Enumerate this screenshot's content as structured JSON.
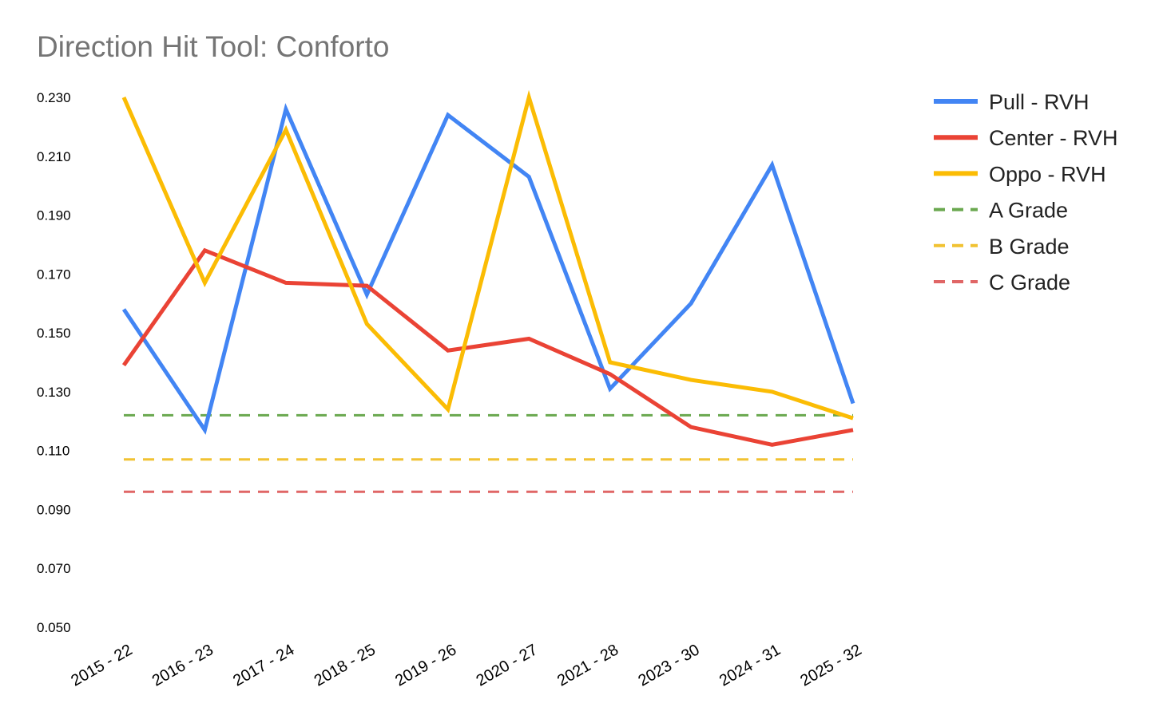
{
  "chart_data": {
    "type": "line",
    "title": "Direction Hit Tool: Conforto",
    "xlabel": "",
    "ylabel": "",
    "ylim": [
      0.05,
      0.23
    ],
    "yticks": [
      "0.050",
      "0.070",
      "0.090",
      "0.110",
      "0.130",
      "0.150",
      "0.170",
      "0.190",
      "0.210",
      "0.230"
    ],
    "grid": false,
    "legend_position": "right",
    "categories": [
      "2015 - 22",
      "2016 - 23",
      "2017 - 24",
      "2018 - 25",
      "2019 - 26",
      "2020 - 27",
      "2021 - 28",
      "2023 - 30",
      "2024 - 31",
      "2025 - 32"
    ],
    "series": [
      {
        "name": "Pull - RVH",
        "color": "#4285f4",
        "style": "solid",
        "values": [
          0.158,
          0.117,
          0.226,
          0.163,
          0.224,
          0.203,
          0.131,
          0.16,
          0.207,
          0.126
        ]
      },
      {
        "name": "Center - RVH",
        "color": "#ea4335",
        "style": "solid",
        "values": [
          0.139,
          0.178,
          0.167,
          0.166,
          0.144,
          0.148,
          0.136,
          0.118,
          0.112,
          0.117
        ]
      },
      {
        "name": "Oppo - RVH",
        "color": "#fbbc04",
        "style": "solid",
        "values": [
          0.23,
          0.167,
          0.219,
          0.153,
          0.124,
          0.23,
          0.14,
          0.134,
          0.13,
          0.121
        ]
      },
      {
        "name": "A Grade",
        "color": "#6aa84f",
        "style": "dashed",
        "values": [
          0.122,
          0.122,
          0.122,
          0.122,
          0.122,
          0.122,
          0.122,
          0.122,
          0.122,
          0.122
        ]
      },
      {
        "name": "B Grade",
        "color": "#f1c232",
        "style": "dashed",
        "values": [
          0.107,
          0.107,
          0.107,
          0.107,
          0.107,
          0.107,
          0.107,
          0.107,
          0.107,
          0.107
        ]
      },
      {
        "name": "C Grade",
        "color": "#e06666",
        "style": "dashed",
        "values": [
          0.096,
          0.096,
          0.096,
          0.096,
          0.096,
          0.096,
          0.096,
          0.096,
          0.096,
          0.096
        ]
      }
    ]
  }
}
